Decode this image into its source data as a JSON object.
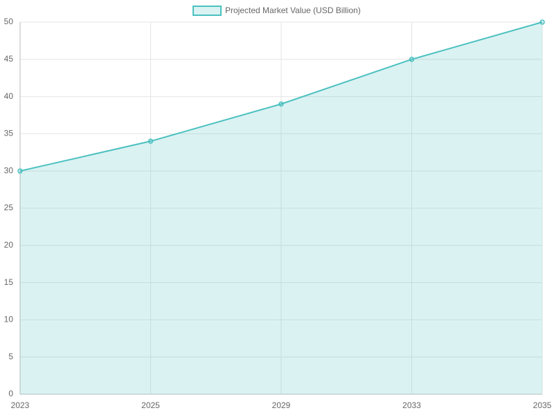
{
  "chart_data": {
    "type": "line",
    "categories": [
      "2023",
      "2025",
      "2029",
      "2033",
      "2035"
    ],
    "series": [
      {
        "name": "Projected Market Value (USD Billion)",
        "color": "#4bc0c0",
        "values": [
          30,
          34,
          39,
          45,
          50
        ]
      }
    ],
    "fill": true,
    "ylim": [
      0,
      50
    ],
    "yticks": [
      0,
      5,
      10,
      15,
      20,
      25,
      30,
      35,
      40,
      45,
      50
    ],
    "grid": true,
    "legend": "top"
  }
}
